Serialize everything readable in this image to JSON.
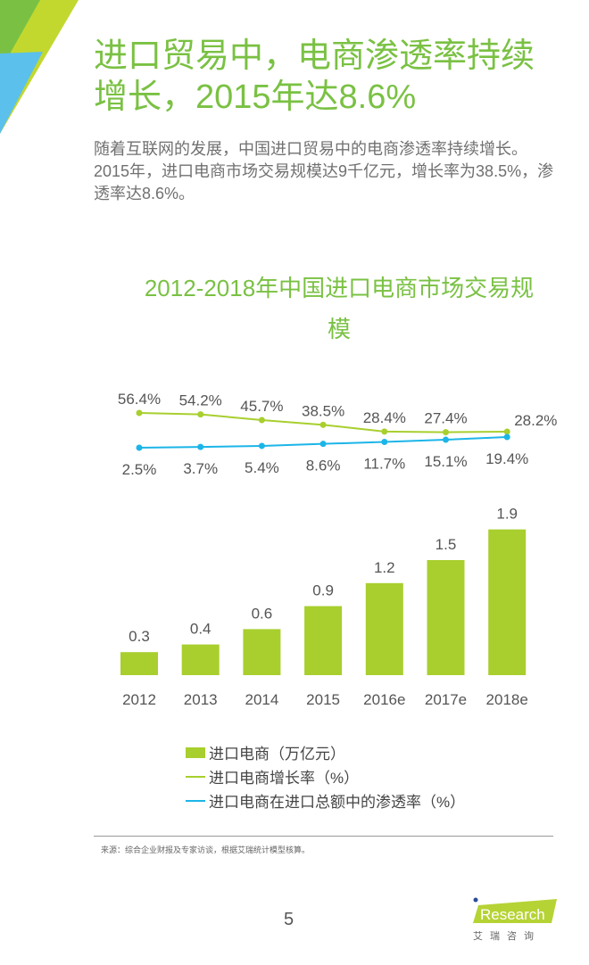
{
  "title": "进口贸易中，电商渗透率持续增长，2015年达8.6%",
  "body": "随着互联网的发展，中国进口贸易中的电商渗透率持续增长。2015年，进口电商市场交易规模达9千亿元，增长率为38.5%，渗透率达8.6%。",
  "chart_data": {
    "type": "bar",
    "title": "2012-2018年中国进口电商市场交易规模",
    "categories": [
      "2012",
      "2013",
      "2014",
      "2015",
      "2016e",
      "2017e",
      "2018e"
    ],
    "series": [
      {
        "name": "进口电商（万亿元）",
        "type": "bar",
        "values": [
          0.3,
          0.4,
          0.6,
          0.9,
          1.2,
          1.5,
          1.9
        ],
        "labels": [
          "0.3",
          "0.4",
          "0.6",
          "0.9",
          "1.2",
          "1.5",
          "1.9"
        ],
        "color": "#a8cf2e"
      },
      {
        "name": "进口电商增长率（%）",
        "type": "line",
        "values": [
          56.4,
          54.2,
          45.7,
          38.5,
          28.4,
          27.4,
          28.2
        ],
        "labels": [
          "56.4%",
          "54.2%",
          "45.7%",
          "38.5%",
          "28.4%",
          "27.4%",
          "28.2%"
        ],
        "color": "#a8cf2e"
      },
      {
        "name": "进口电商在进口总额中的渗透率（%）",
        "type": "line",
        "values": [
          2.5,
          3.7,
          5.4,
          8.6,
          11.7,
          15.1,
          19.4
        ],
        "labels": [
          "2.5%",
          "3.7%",
          "5.4%",
          "8.6%",
          "11.7%",
          "15.1%",
          "19.4%"
        ],
        "color": "#1cb5e8"
      }
    ],
    "legend": "bottom"
  },
  "source": "来源：综合企业财报及专家访谈，根据艾瑞统计模型核算。",
  "page_number": "5",
  "logo": {
    "brand": "iResearch",
    "cn": "艾 瑞 咨 询"
  }
}
